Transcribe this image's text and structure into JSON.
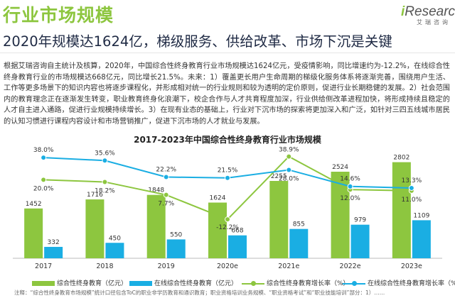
{
  "header": {
    "title": "行业市场规模",
    "logo_text": "iResearch",
    "logo_sub": "艾瑞咨询"
  },
  "subtitle": "2020年规模达1624亿，梯级服务、供给改革、市场下沉是关键",
  "body_text": "根据艾瑞咨询自主统计及核算，2020年，中国综合性终身教育行业市场规模达1624亿元，受疫情影响，同比增速约为-12.2%，在线综合性终身教育行业的市场规模达668亿元，同比增长21.5%。未来：1）覆盖更长用户生命周期的梯级化服务体系将逐渐完善，围绕用户生活、工作等更多场景下的知识内容也将逐步课程化，并形成相对统一的行业规则和较为透明的定价原则，促进行业长期稳健的发展。2）社会范围内的教育理念正在逐渐发生转变，职业教育终身化浪潮下，校企合作与人才共育程度加深，行业供给侧改革进程加快，将形成持续且稳定的人才自主进入通路，促进行业规模持续增长。3）在现有业态的基础上，行业对下沉市场的探索将更加深入和广泛，如针对三四五线城市居民的认知习惯进行课程内容设计和市场营销推广，促进下沉市场的人才就业与发展。",
  "legend": {
    "s1": "综合性终身教育（亿元）",
    "s2": "在线综合性终身教育（亿元）",
    "s3": "综合性终身教育增长率（%）",
    "s4": "在线综合性终身教育增长率（%）"
  },
  "footnote": "注释：“综合性终身教育市场规模”统计口径包含ToC的职业非学历教育和通识教育；职业资格培训业务规模、“职业资格考试”和“职业技能培训”部分：1）……",
  "colors": {
    "green": "#8dc63f",
    "blue": "#1aaee3",
    "title_green": "#8dc63f"
  },
  "chart_data": {
    "type": "bar",
    "title": "2017-2023年中国综合性终身教育行业市场规模",
    "categories": [
      "2017",
      "2018",
      "2019",
      "2020e",
      "2021e",
      "2022e",
      "2023e"
    ],
    "series": [
      {
        "name": "综合性终身教育（亿元）",
        "type": "bar",
        "color": "#8dc63f",
        "values": [
          1452,
          1716,
          1848,
          1624,
          2255,
          2524,
          2802
        ]
      },
      {
        "name": "在线综合性终身教育（亿元）",
        "type": "bar",
        "color": "#1aaee3",
        "values": [
          332,
          450,
          550,
          668,
          855,
          979,
          1109
        ]
      },
      {
        "name": "综合性终身教育增长率（%）",
        "type": "line",
        "color": "#8dc63f",
        "values": [
          20.0,
          18.2,
          7.7,
          -12.2,
          38.9,
          12.0,
          11.0
        ]
      },
      {
        "name": "在线综合性终身教育增长率（%）",
        "type": "line",
        "color": "#1aaee3",
        "values": [
          38.0,
          35.6,
          22.2,
          21.5,
          28.0,
          14.6,
          13.3
        ]
      }
    ],
    "bar_labels": [
      [
        "1452",
        "1716",
        "1848",
        "1624",
        "2255",
        "2524",
        "2802"
      ],
      [
        "332",
        "450",
        "550",
        "668",
        "855",
        "979",
        "1109"
      ]
    ],
    "rate_labels": [
      [
        "20.0%",
        "18.2%",
        "7.7%",
        "-12.2%",
        "38.9%",
        "12.0%",
        "11.0%"
      ],
      [
        "38.0%",
        "35.6%",
        "22.2%",
        "21.5%",
        "28.0%",
        "14.6%",
        "13.3%"
      ]
    ],
    "bar_ylim": [
      0,
      3000
    ],
    "rate_ylim": [
      -15,
      45
    ],
    "grid": false,
    "legend_position": "bottom"
  }
}
